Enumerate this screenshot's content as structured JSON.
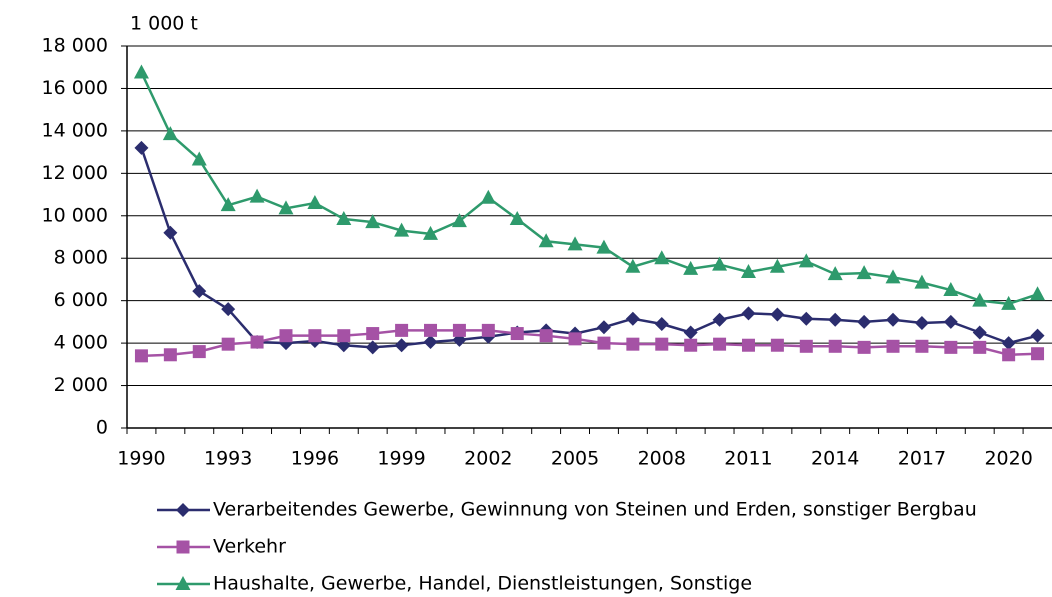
{
  "chart_data": {
    "type": "line",
    "y_axis_label": "1 000 t",
    "categories": [
      "1990",
      null,
      null,
      "1993",
      null,
      null,
      "1996",
      null,
      null,
      "1999",
      null,
      null,
      "2002",
      null,
      null,
      "2005",
      null,
      null,
      "2008",
      null,
      null,
      "2011",
      null,
      null,
      "2014",
      null,
      null,
      "2017",
      null,
      null,
      "2020",
      null
    ],
    "series": [
      {
        "name": "Verarbeitendes Gewerbe, Gewinnung von Steinen und Erden, sonstiger Bergbau",
        "color": "#2b2d6e",
        "marker": "diamond",
        "values": [
          13200,
          9200,
          6450,
          5600,
          4050,
          4000,
          4100,
          3900,
          3800,
          3900,
          4050,
          4150,
          4300,
          4500,
          4600,
          4450,
          4750,
          5150,
          4900,
          4500,
          5100,
          5400,
          5350,
          5150,
          5100,
          5000,
          5100,
          4950,
          5000,
          4500,
          4000,
          4350
        ]
      },
      {
        "name": "Verkehr",
        "color": "#a552a5",
        "marker": "square",
        "values": [
          3400,
          3450,
          3600,
          3950,
          4050,
          4350,
          4350,
          4350,
          4450,
          4600,
          4600,
          4600,
          4600,
          4450,
          4350,
          4200,
          4000,
          3950,
          3950,
          3900,
          3950,
          3900,
          3900,
          3850,
          3850,
          3800,
          3850,
          3850,
          3800,
          3800,
          3450,
          3500
        ]
      },
      {
        "name": "Haushalte, Gewerbe, Handel, Dienstleistungen, Sonstige",
        "color": "#2e9a6c",
        "marker": "triangle",
        "values": [
          16750,
          13850,
          12650,
          10500,
          10900,
          10350,
          10600,
          9850,
          9700,
          9300,
          9150,
          9750,
          10850,
          9850,
          8800,
          8650,
          8500,
          7600,
          8000,
          7500,
          7700,
          7350,
          7600,
          7850,
          7250,
          7300,
          7100,
          6850,
          6500,
          6000,
          5850,
          6300
        ]
      }
    ],
    "ylim": [
      0,
      18000
    ],
    "yticks": [
      0,
      {
        "value": 2000,
        "label": "2 000"
      },
      {
        "value": 4000,
        "label": "4 000"
      },
      {
        "value": 6000,
        "label": "6 000"
      },
      {
        "value": 8000,
        "label": "8 000"
      },
      {
        "value": 10000,
        "label": "10 000"
      },
      {
        "value": 12000,
        "label": "12 000"
      },
      {
        "value": 14000,
        "label": "14 000"
      },
      {
        "value": 16000,
        "label": "16 000"
      },
      {
        "value": 18000,
        "label": "18 000"
      }
    ],
    "grid": true,
    "legend": "bottom"
  }
}
